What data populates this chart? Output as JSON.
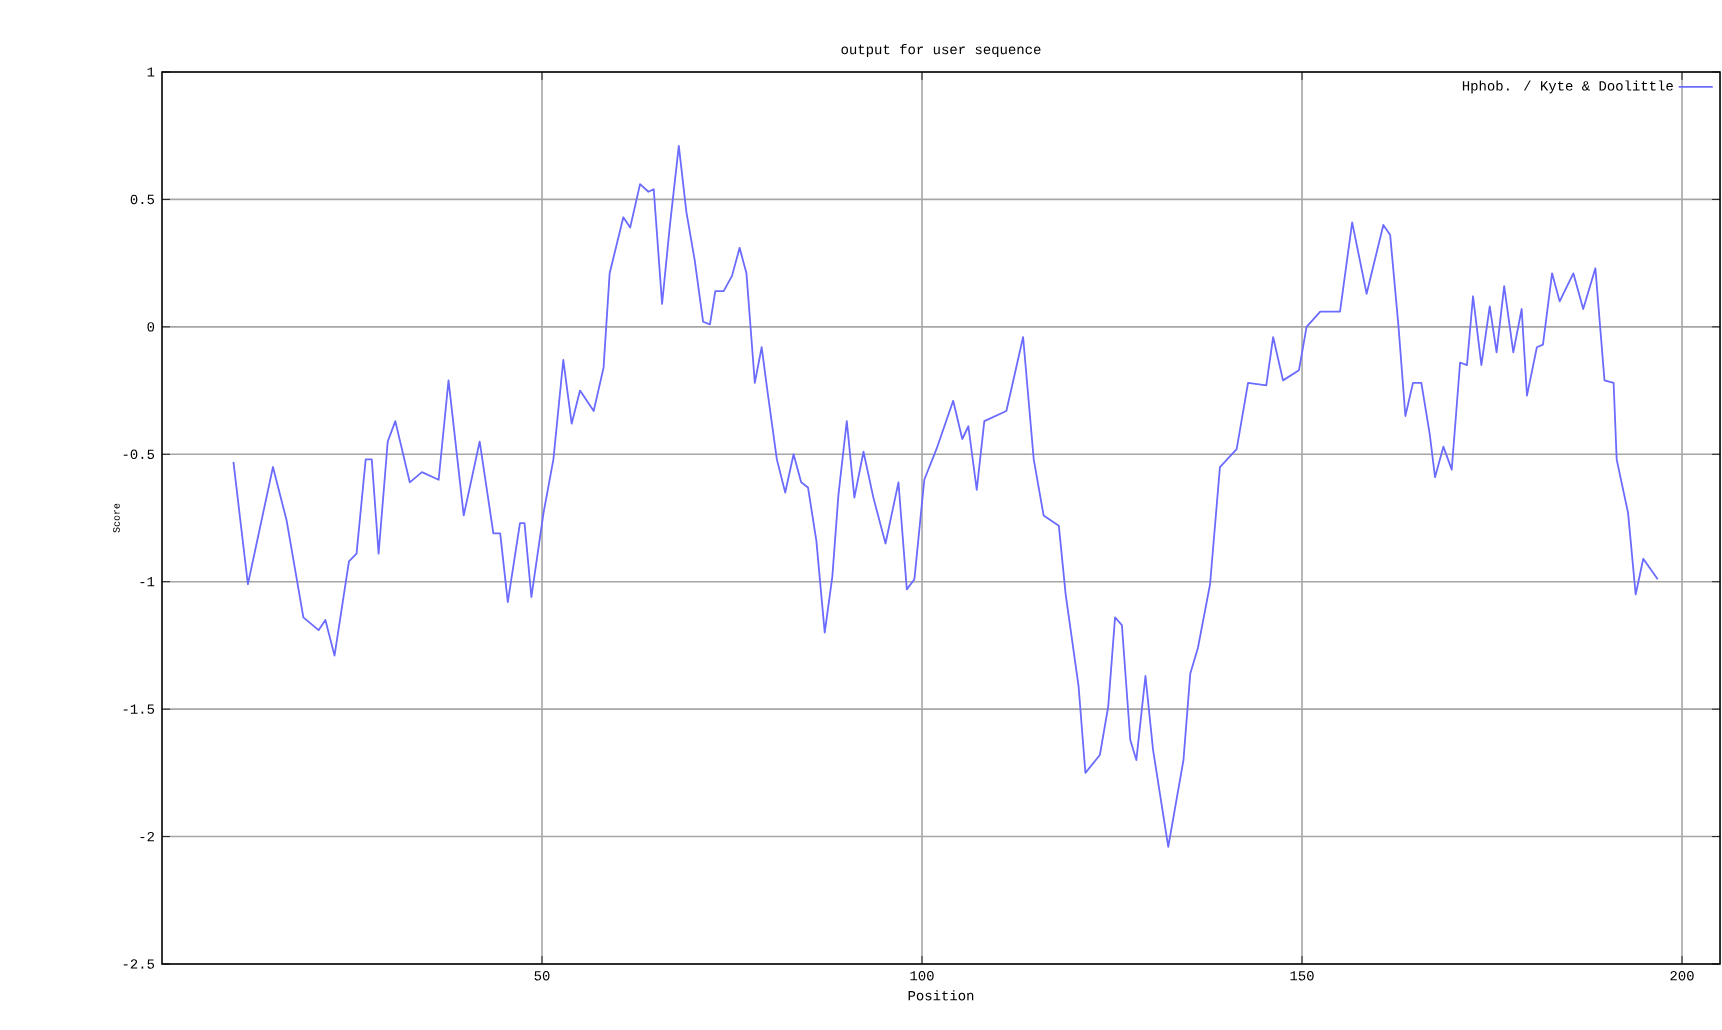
{
  "chart_data": {
    "type": "line",
    "title": "output for user sequence",
    "xlabel": "Position",
    "ylabel": "Score",
    "xlim": [
      0,
      205
    ],
    "ylim": [
      -2.5,
      1
    ],
    "xticks": [
      50,
      100,
      150,
      200
    ],
    "yticks": [
      -2.5,
      -2,
      -1.5,
      -1,
      -0.5,
      0,
      0.5,
      1
    ],
    "grid": true,
    "legend": "top right",
    "series": [
      {
        "name": "Hphob. / Kyte & Doolittle",
        "color": "#6b6bff",
        "x": [
          9.4,
          11.3,
          14.6,
          16.4,
          18.6,
          20.6,
          21.5,
          22.7,
          24.6,
          25.6,
          26.8,
          27.6,
          28.5,
          29.7,
          30.7,
          32.6,
          34.2,
          36.4,
          37.7,
          39.7,
          41.8,
          43.6,
          44.5,
          45.5,
          47.1,
          47.7,
          48.6,
          50.2,
          51.5,
          52.8,
          53.9,
          55,
          56.8,
          58.1,
          58.9,
          60.7,
          61.6,
          62.9,
          64,
          64.7,
          65.8,
          66.8,
          68,
          69,
          70.1,
          71.2,
          72.1,
          72.8,
          73.9,
          75,
          76,
          76.9,
          78,
          78.9,
          79.7,
          80.9,
          82,
          83.1,
          84.1,
          85,
          86.1,
          87.2,
          88.2,
          89,
          90.1,
          91.1,
          92.3,
          93.6,
          95.2,
          96.9,
          98,
          99,
          100.3,
          101.9,
          104.1,
          105.3,
          106.1,
          107.2,
          108.2,
          111.1,
          113.3,
          114.7,
          116,
          118,
          118.9,
          120.6,
          121.5,
          123.4,
          124.5,
          125.4,
          126.3,
          127.4,
          128.2,
          129.4,
          130.4,
          132.4,
          134.4,
          135.3,
          136.3,
          137.9,
          139.2,
          141.4,
          142.9,
          145.3,
          146.2,
          147.5,
          149.6,
          150.6,
          152.4,
          155,
          156.6,
          158.5,
          160.7,
          161.6,
          162.7,
          163.6,
          164.6,
          165.7,
          166.8,
          167.5,
          168.6,
          169.7,
          170.8,
          171.7,
          172.5,
          173.6,
          174.7,
          175.6,
          176.6,
          177.8,
          178.9,
          179.6,
          180.9,
          181.7,
          182.9,
          183.9,
          185.7,
          187,
          188.6,
          189.8,
          191,
          191.4,
          192.9,
          193.9,
          194.9,
          196.8
        ],
        "values": [
          -0.53,
          -1.01,
          -0.55,
          -0.76,
          -1.14,
          -1.19,
          -1.15,
          -1.29,
          -0.92,
          -0.89,
          -0.52,
          -0.52,
          -0.89,
          -0.45,
          -0.37,
          -0.61,
          -0.57,
          -0.6,
          -0.21,
          -0.74,
          -0.45,
          -0.81,
          -0.81,
          -1.08,
          -0.77,
          -0.77,
          -1.06,
          -0.73,
          -0.52,
          -0.13,
          -0.38,
          -0.25,
          -0.33,
          -0.16,
          0.21,
          0.43,
          0.39,
          0.56,
          0.53,
          0.54,
          0.09,
          0.39,
          0.71,
          0.45,
          0.26,
          0.02,
          0.01,
          0.14,
          0.14,
          0.2,
          0.31,
          0.21,
          -0.22,
          -0.08,
          -0.26,
          -0.52,
          -0.65,
          -0.5,
          -0.61,
          -0.63,
          -0.84,
          -1.2,
          -0.98,
          -0.66,
          -0.37,
          -0.67,
          -0.49,
          -0.67,
          -0.85,
          -0.61,
          -1.03,
          -0.99,
          -0.6,
          -0.48,
          -0.29,
          -0.44,
          -0.39,
          -0.64,
          -0.37,
          -0.33,
          -0.04,
          -0.52,
          -0.74,
          -0.78,
          -1.05,
          -1.41,
          -1.75,
          -1.68,
          -1.49,
          -1.14,
          -1.17,
          -1.62,
          -1.7,
          -1.37,
          -1.66,
          -2.04,
          -1.7,
          -1.36,
          -1.26,
          -1.01,
          -0.55,
          -0.48,
          -0.22,
          -0.23,
          -0.04,
          -0.21,
          -0.17,
          0.0,
          0.06,
          0.06,
          0.41,
          0.13,
          0.4,
          0.36,
          0.0,
          -0.35,
          -0.22,
          -0.22,
          -0.42,
          -0.59,
          -0.47,
          -0.56,
          -0.14,
          -0.15,
          0.12,
          -0.15,
          0.08,
          -0.1,
          0.16,
          -0.1,
          0.07,
          -0.27,
          -0.08,
          -0.07,
          0.21,
          0.1,
          0.21,
          0.07,
          0.23,
          -0.21,
          -0.22,
          -0.52,
          -0.73,
          -1.05,
          -0.91,
          -0.99
        ]
      }
    ]
  }
}
